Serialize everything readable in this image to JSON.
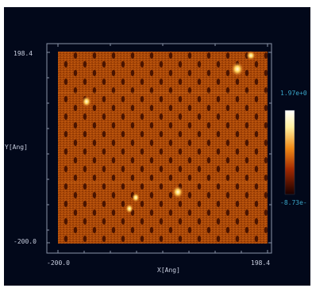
{
  "plot": {
    "x_axis_title": "X[Ang]",
    "y_axis_title": "Y[Ang]",
    "x_min_label": "-200.0",
    "x_max_label": "198.4",
    "y_min_label": "-200.0",
    "y_max_label": "198.4"
  },
  "colorbar": {
    "max_label": "1.97e+0",
    "min_label": "-8.73e-",
    "colormap": "afmhot"
  },
  "colors": {
    "background": "#02081a",
    "axis": "#8a93a8",
    "surface_dark": "#5c1c00",
    "surface_mid": "#a34306",
    "surface_light": "#c95a12",
    "highlight": "#fff2b0"
  },
  "features": {
    "hole_lattice": "hexagonal",
    "bright_spots": 6
  }
}
